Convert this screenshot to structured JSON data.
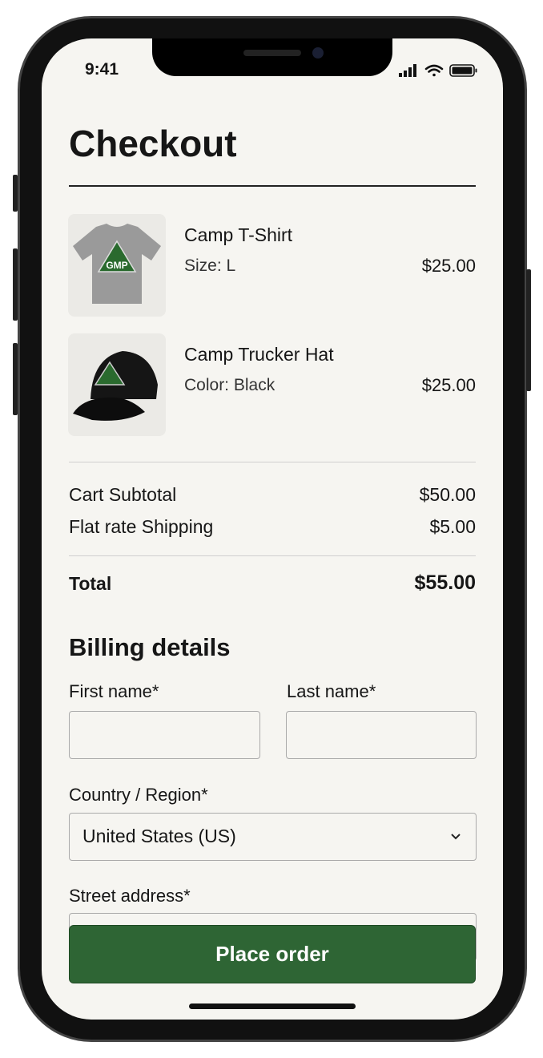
{
  "status_bar": {
    "time": "9:41",
    "icons": [
      "signal-icon",
      "wifi-icon",
      "battery-icon"
    ]
  },
  "page_title": "Checkout",
  "cart": {
    "items": [
      {
        "name": "Camp T-Shirt",
        "variant": "Size: L",
        "price": "$25.00",
        "image": "gray t-shirt with GMP logo"
      },
      {
        "name": "Camp Trucker Hat",
        "variant": "Color: Black",
        "price": "$25.00",
        "image": "black trucker hat with logo"
      }
    ]
  },
  "totals": {
    "subtotal_label": "Cart Subtotal",
    "subtotal": "$50.00",
    "shipping_label": "Flat rate Shipping",
    "shipping": "$5.00",
    "total_label": "Total",
    "total": "$55.00"
  },
  "billing": {
    "title": "Billing details",
    "first_name_label": "First name*",
    "first_name": "",
    "last_name_label": "Last name*",
    "last_name": "",
    "country_label": "Country / Region*",
    "country": "United States (US)",
    "street_label": "Street address*"
  },
  "place_order_label": "Place order",
  "colors": {
    "accent": "#2e6534",
    "background": "#f6f5f1"
  }
}
